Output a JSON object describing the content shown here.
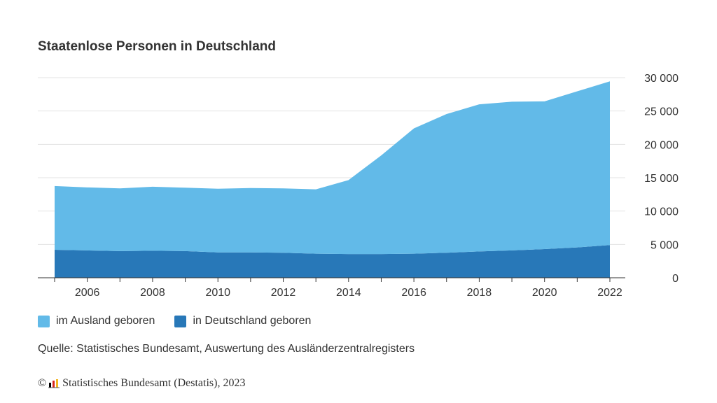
{
  "title": "Staatenlose Personen in Deutschland",
  "chart_data": {
    "type": "area",
    "stacked": true,
    "title": "Staatenlose Personen in Deutschland",
    "x": [
      2005,
      2006,
      2007,
      2008,
      2009,
      2010,
      2011,
      2012,
      2013,
      2014,
      2015,
      2016,
      2017,
      2018,
      2019,
      2020,
      2021,
      2022
    ],
    "x_ticks": [
      "2006",
      "2008",
      "2010",
      "2012",
      "2014",
      "2016",
      "2018",
      "2020",
      "2022"
    ],
    "y_ticks": [
      "0",
      "5 000",
      "10 000",
      "15 000",
      "20 000",
      "25 000",
      "30 000"
    ],
    "ylim": [
      0,
      30000
    ],
    "y_axis_side": "right",
    "grid": true,
    "legend_position": "bottom-left",
    "series": [
      {
        "name": "in Deutschland geboren",
        "color": "#2878b8",
        "values": [
          4200,
          4100,
          4000,
          4050,
          4000,
          3800,
          3800,
          3750,
          3600,
          3550,
          3550,
          3600,
          3750,
          3950,
          4100,
          4300,
          4550,
          4900
        ]
      },
      {
        "name": "im Ausland geboren",
        "color": "#62bae8",
        "values": [
          9550,
          9450,
          9400,
          9600,
          9500,
          9550,
          9650,
          9650,
          9650,
          11100,
          14800,
          18800,
          20800,
          22050,
          22300,
          22150,
          23400,
          24550
        ]
      }
    ]
  },
  "legend": [
    {
      "label": "im Ausland geboren",
      "color": "#62bae8"
    },
    {
      "label": "in Deutschland geboren",
      "color": "#2878b8"
    }
  ],
  "source": "Quelle: Statistisches Bundesamt, Auswertung des Ausländerzentralregisters",
  "footer": {
    "copyright_symbol": "©",
    "logo_icon": "destatis-logo-icon",
    "text": "Statistisches Bundesamt (Destatis), 2023"
  }
}
